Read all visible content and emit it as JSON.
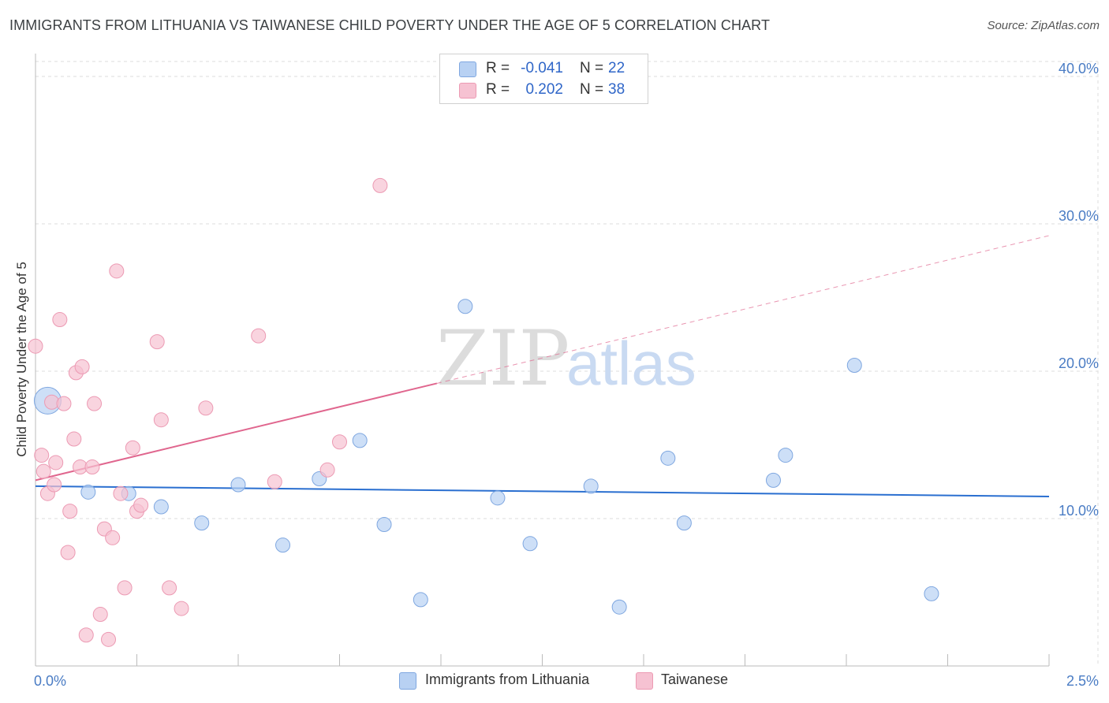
{
  "title": "IMMIGRANTS FROM LITHUANIA VS TAIWANESE CHILD POVERTY UNDER THE AGE OF 5 CORRELATION CHART",
  "source": "Source: ZipAtlas.com",
  "watermark": {
    "zip": "ZIP",
    "atlas": "atlas"
  },
  "colors": {
    "blue_fill": "#b8d1f3",
    "blue_stroke": "#7fa7e0",
    "blue_line": "#2a6fd0",
    "pink_fill": "#f6c2d2",
    "pink_stroke": "#ec9ab3",
    "pink_line": "#e0668e",
    "tick_text": "#4a7cc4",
    "grid": "#dddddd"
  },
  "legend": {
    "rows": [
      {
        "r_label": "R =",
        "r_value": "-0.041",
        "n_label": "N =",
        "n_value": "22",
        "color": "#b8d1f3"
      },
      {
        "r_label": "R =",
        "r_value": "0.202",
        "n_label": "N =",
        "n_value": "38",
        "color": "#f6c2d2"
      }
    ]
  },
  "bottom_legend": {
    "series1": "Immigrants from Lithuania",
    "series2": "Taiwanese"
  },
  "chart_data": {
    "type": "scatter",
    "xlabel": "",
    "ylabel": "Child Poverty Under the Age of 5",
    "xlim": [
      0.0,
      2.5
    ],
    "ylim": [
      0.0,
      40.0
    ],
    "x_tick_labels": [
      "0.0%",
      "2.5%"
    ],
    "y_ticks": [
      10,
      20,
      30,
      40
    ],
    "y_tick_labels": [
      "10.0%",
      "20.0%",
      "30.0%",
      "40.0%"
    ],
    "grid": true,
    "series": [
      {
        "name": "Immigrants from Lithuania",
        "r": -0.041,
        "n": 22,
        "trend": {
          "x": [
            0.0,
            2.5
          ],
          "y": [
            12.2,
            11.5
          ],
          "dashed_from": null
        },
        "points": [
          {
            "x": 0.03,
            "y": 18.0,
            "size": "large"
          },
          {
            "x": 0.13,
            "y": 11.8
          },
          {
            "x": 0.23,
            "y": 11.7
          },
          {
            "x": 0.31,
            "y": 10.8
          },
          {
            "x": 0.41,
            "y": 9.7
          },
          {
            "x": 0.5,
            "y": 12.3
          },
          {
            "x": 0.61,
            "y": 8.2
          },
          {
            "x": 0.7,
            "y": 12.7
          },
          {
            "x": 0.8,
            "y": 15.3
          },
          {
            "x": 0.86,
            "y": 9.6
          },
          {
            "x": 0.95,
            "y": 4.5
          },
          {
            "x": 1.06,
            "y": 24.4
          },
          {
            "x": 1.14,
            "y": 11.4
          },
          {
            "x": 1.22,
            "y": 8.3
          },
          {
            "x": 1.37,
            "y": 12.2
          },
          {
            "x": 1.44,
            "y": 4.0
          },
          {
            "x": 1.56,
            "y": 14.1
          },
          {
            "x": 1.6,
            "y": 9.7
          },
          {
            "x": 1.82,
            "y": 12.6
          },
          {
            "x": 1.85,
            "y": 14.3
          },
          {
            "x": 2.02,
            "y": 20.4
          },
          {
            "x": 2.21,
            "y": 4.9
          }
        ]
      },
      {
        "name": "Taiwanese",
        "r": 0.202,
        "n": 38,
        "trend": {
          "x": [
            0.0,
            2.5
          ],
          "y": [
            12.6,
            29.2
          ],
          "dashed_from": 0.99
        },
        "points": [
          {
            "x": 0.0,
            "y": 21.7
          },
          {
            "x": 0.015,
            "y": 14.3
          },
          {
            "x": 0.02,
            "y": 13.2
          },
          {
            "x": 0.03,
            "y": 11.7
          },
          {
            "x": 0.04,
            "y": 17.9
          },
          {
            "x": 0.046,
            "y": 12.3
          },
          {
            "x": 0.05,
            "y": 13.8
          },
          {
            "x": 0.06,
            "y": 23.5
          },
          {
            "x": 0.07,
            "y": 17.8
          },
          {
            "x": 0.08,
            "y": 7.7
          },
          {
            "x": 0.085,
            "y": 10.5
          },
          {
            "x": 0.095,
            "y": 15.4
          },
          {
            "x": 0.1,
            "y": 19.9
          },
          {
            "x": 0.11,
            "y": 13.5
          },
          {
            "x": 0.115,
            "y": 20.3
          },
          {
            "x": 0.125,
            "y": 2.1
          },
          {
            "x": 0.14,
            "y": 13.5
          },
          {
            "x": 0.145,
            "y": 17.8
          },
          {
            "x": 0.16,
            "y": 3.5
          },
          {
            "x": 0.17,
            "y": 9.3
          },
          {
            "x": 0.18,
            "y": 1.8
          },
          {
            "x": 0.19,
            "y": 8.7
          },
          {
            "x": 0.2,
            "y": 26.8
          },
          {
            "x": 0.21,
            "y": 11.7
          },
          {
            "x": 0.22,
            "y": 5.3
          },
          {
            "x": 0.24,
            "y": 14.8
          },
          {
            "x": 0.25,
            "y": 10.5
          },
          {
            "x": 0.26,
            "y": 10.9
          },
          {
            "x": 0.3,
            "y": 22.0
          },
          {
            "x": 0.31,
            "y": 16.7
          },
          {
            "x": 0.33,
            "y": 5.3
          },
          {
            "x": 0.36,
            "y": 3.9
          },
          {
            "x": 0.42,
            "y": 17.5
          },
          {
            "x": 0.55,
            "y": 22.4
          },
          {
            "x": 0.59,
            "y": 12.5
          },
          {
            "x": 0.72,
            "y": 13.3
          },
          {
            "x": 0.75,
            "y": 15.2
          },
          {
            "x": 0.85,
            "y": 32.6
          }
        ]
      }
    ]
  }
}
